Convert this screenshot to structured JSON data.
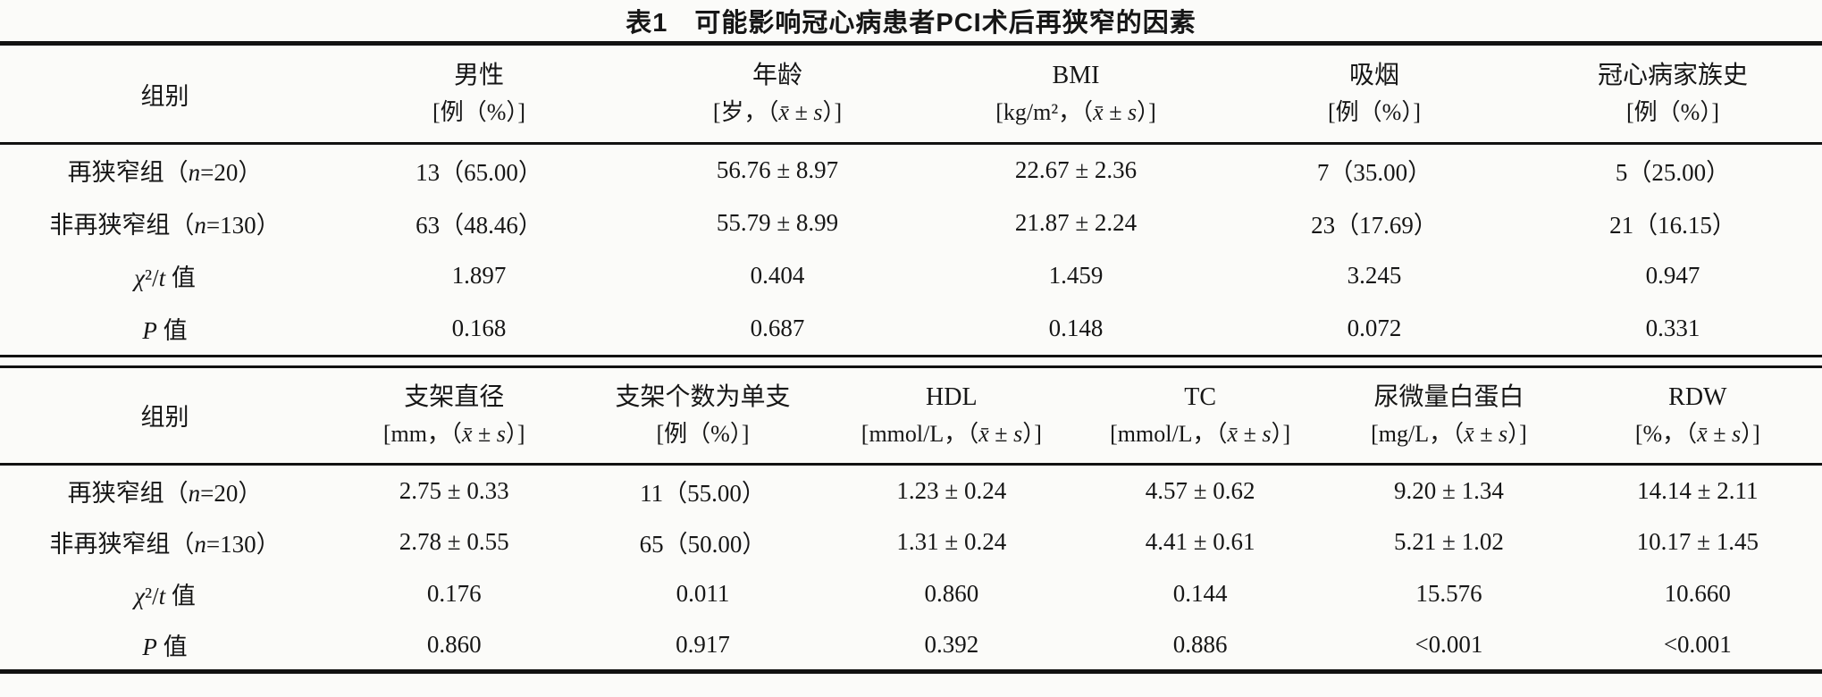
{
  "page": {
    "background_color": "#fbfbf9",
    "text_color": "#161616",
    "rule_color": "#121212"
  },
  "title": "表1　可能影响冠心病患者PCI术后再狭窄的因素",
  "tables": [
    {
      "group_header": "组别",
      "columns": [
        {
          "name": "男性",
          "unit": "[例（%）]"
        },
        {
          "name": "年龄",
          "unit": "[岁，（x̄ ± s）]"
        },
        {
          "name": "BMI",
          "unit": "[kg/m²，（x̄ ± s）]"
        },
        {
          "name": "吸烟",
          "unit": "[例（%）]"
        },
        {
          "name": "冠心病家族史",
          "unit": "[例（%）]"
        }
      ],
      "rows": [
        {
          "label": "再狭窄组（n=20）",
          "values": [
            "13（65.00）",
            "56.76 ± 8.97",
            "22.67 ± 2.36",
            "7（35.00）",
            "5（25.00）"
          ]
        },
        {
          "label": "非再狭窄组（n=130）",
          "values": [
            "63（48.46）",
            "55.79 ± 8.99",
            "21.87 ± 2.24",
            "23（17.69）",
            "21（16.15）"
          ]
        },
        {
          "label": "χ²/t 值",
          "values": [
            "1.897",
            "0.404",
            "1.459",
            "3.245",
            "0.947"
          ]
        },
        {
          "label": "P 值",
          "values": [
            "0.168",
            "0.687",
            "0.148",
            "0.072",
            "0.331"
          ]
        }
      ]
    },
    {
      "group_header": "组别",
      "columns": [
        {
          "name": "支架直径",
          "unit": "[mm，（x̄ ± s）]"
        },
        {
          "name": "支架个数为单支",
          "unit": "[例（%）]"
        },
        {
          "name": "HDL",
          "unit": "[mmol/L，（x̄ ± s）]"
        },
        {
          "name": "TC",
          "unit": "[mmol/L，（x̄ ± s）]"
        },
        {
          "name": "尿微量白蛋白",
          "unit": "[mg/L，（x̄ ± s）]"
        },
        {
          "name": "RDW",
          "unit": "[%，（x̄ ± s）]"
        }
      ],
      "rows": [
        {
          "label": "再狭窄组（n=20）",
          "values": [
            "2.75 ± 0.33",
            "11（55.00）",
            "1.23 ± 0.24",
            "4.57 ± 0.62",
            "9.20 ± 1.34",
            "14.14 ± 2.11"
          ]
        },
        {
          "label": "非再狭窄组（n=130）",
          "values": [
            "2.78 ± 0.55",
            "65（50.00）",
            "1.31 ± 0.24",
            "4.41 ± 0.61",
            "5.21 ± 1.02",
            "10.17 ± 1.45"
          ]
        },
        {
          "label": "χ²/t 值",
          "values": [
            "0.176",
            "0.011",
            "0.860",
            "0.144",
            "15.576",
            "10.660"
          ]
        },
        {
          "label": "P 值",
          "values": [
            "0.860",
            "0.917",
            "0.392",
            "0.886",
            "<0.001",
            "<0.001"
          ]
        }
      ]
    }
  ]
}
